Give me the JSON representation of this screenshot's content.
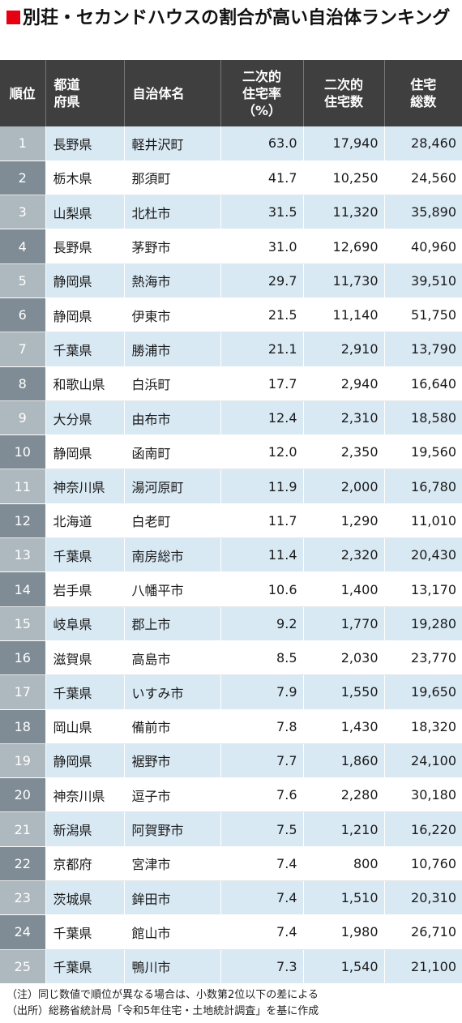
{
  "title": "別荘・セカンドハウスの割合が高い自治体ランキング",
  "headers": {
    "rank": "順位",
    "pref_line1": "都道",
    "pref_line2": "府県",
    "municipality": "自治体名",
    "ratio_line1": "二次的",
    "ratio_line2": "住宅率",
    "ratio_line3": "（%）",
    "second_line1": "二次的",
    "second_line2": "住宅数",
    "total_line1": "住宅",
    "total_line2": "総数"
  },
  "rows": [
    {
      "rank": "1",
      "pref": "長野県",
      "muni": "軽井沢町",
      "ratio": "63.0",
      "second": "17,940",
      "total": "28,460"
    },
    {
      "rank": "2",
      "pref": "栃木県",
      "muni": "那須町",
      "ratio": "41.7",
      "second": "10,250",
      "total": "24,560"
    },
    {
      "rank": "3",
      "pref": "山梨県",
      "muni": "北杜市",
      "ratio": "31.5",
      "second": "11,320",
      "total": "35,890"
    },
    {
      "rank": "4",
      "pref": "長野県",
      "muni": "茅野市",
      "ratio": "31.0",
      "second": "12,690",
      "total": "40,960"
    },
    {
      "rank": "5",
      "pref": "静岡県",
      "muni": "熱海市",
      "ratio": "29.7",
      "second": "11,730",
      "total": "39,510"
    },
    {
      "rank": "6",
      "pref": "静岡県",
      "muni": "伊東市",
      "ratio": "21.5",
      "second": "11,140",
      "total": "51,750"
    },
    {
      "rank": "7",
      "pref": "千葉県",
      "muni": "勝浦市",
      "ratio": "21.1",
      "second": "2,910",
      "total": "13,790"
    },
    {
      "rank": "8",
      "pref": "和歌山県",
      "muni": "白浜町",
      "ratio": "17.7",
      "second": "2,940",
      "total": "16,640"
    },
    {
      "rank": "9",
      "pref": "大分県",
      "muni": "由布市",
      "ratio": "12.4",
      "second": "2,310",
      "total": "18,580"
    },
    {
      "rank": "10",
      "pref": "静岡県",
      "muni": "函南町",
      "ratio": "12.0",
      "second": "2,350",
      "total": "19,560"
    },
    {
      "rank": "11",
      "pref": "神奈川県",
      "muni": "湯河原町",
      "ratio": "11.9",
      "second": "2,000",
      "total": "16,780"
    },
    {
      "rank": "12",
      "pref": "北海道",
      "muni": "白老町",
      "ratio": "11.7",
      "second": "1,290",
      "total": "11,010"
    },
    {
      "rank": "13",
      "pref": "千葉県",
      "muni": "南房総市",
      "ratio": "11.4",
      "second": "2,320",
      "total": "20,430"
    },
    {
      "rank": "14",
      "pref": "岩手県",
      "muni": "八幡平市",
      "ratio": "10.6",
      "second": "1,400",
      "total": "13,170"
    },
    {
      "rank": "15",
      "pref": "岐阜県",
      "muni": "郡上市",
      "ratio": "9.2",
      "second": "1,770",
      "total": "19,280"
    },
    {
      "rank": "16",
      "pref": "滋賀県",
      "muni": "高島市",
      "ratio": "8.5",
      "second": "2,030",
      "total": "23,770"
    },
    {
      "rank": "17",
      "pref": "千葉県",
      "muni": "いすみ市",
      "ratio": "7.9",
      "second": "1,550",
      "total": "19,650"
    },
    {
      "rank": "18",
      "pref": "岡山県",
      "muni": "備前市",
      "ratio": "7.8",
      "second": "1,430",
      "total": "18,320"
    },
    {
      "rank": "19",
      "pref": "静岡県",
      "muni": "裾野市",
      "ratio": "7.7",
      "second": "1,860",
      "total": "24,100"
    },
    {
      "rank": "20",
      "pref": "神奈川県",
      "muni": "逗子市",
      "ratio": "7.6",
      "second": "2,280",
      "total": "30,180"
    },
    {
      "rank": "21",
      "pref": "新潟県",
      "muni": "阿賀野市",
      "ratio": "7.5",
      "second": "1,210",
      "total": "16,220"
    },
    {
      "rank": "22",
      "pref": "京都府",
      "muni": "宮津市",
      "ratio": "7.4",
      "second": "800",
      "total": "10,760"
    },
    {
      "rank": "23",
      "pref": "茨城県",
      "muni": "鉾田市",
      "ratio": "7.4",
      "second": "1,510",
      "total": "20,310"
    },
    {
      "rank": "24",
      "pref": "千葉県",
      "muni": "館山市",
      "ratio": "7.4",
      "second": "1,980",
      "total": "26,710"
    },
    {
      "rank": "25",
      "pref": "千葉県",
      "muni": "鴨川市",
      "ratio": "7.3",
      "second": "1,540",
      "total": "21,100"
    }
  ],
  "notes": [
    "（注）同じ数値で順位が異なる場合は、小数第2位以下の差による",
    "（出所）総務省統計局「令和5年住宅・土地統計調査」を基に作成"
  ],
  "colors": {
    "accent": "#e60012",
    "header_bg": "#3f3f3f",
    "row_band": "#d9e9f4",
    "rank_light": "#aeb8bf",
    "rank_dark": "#7f8c95"
  }
}
